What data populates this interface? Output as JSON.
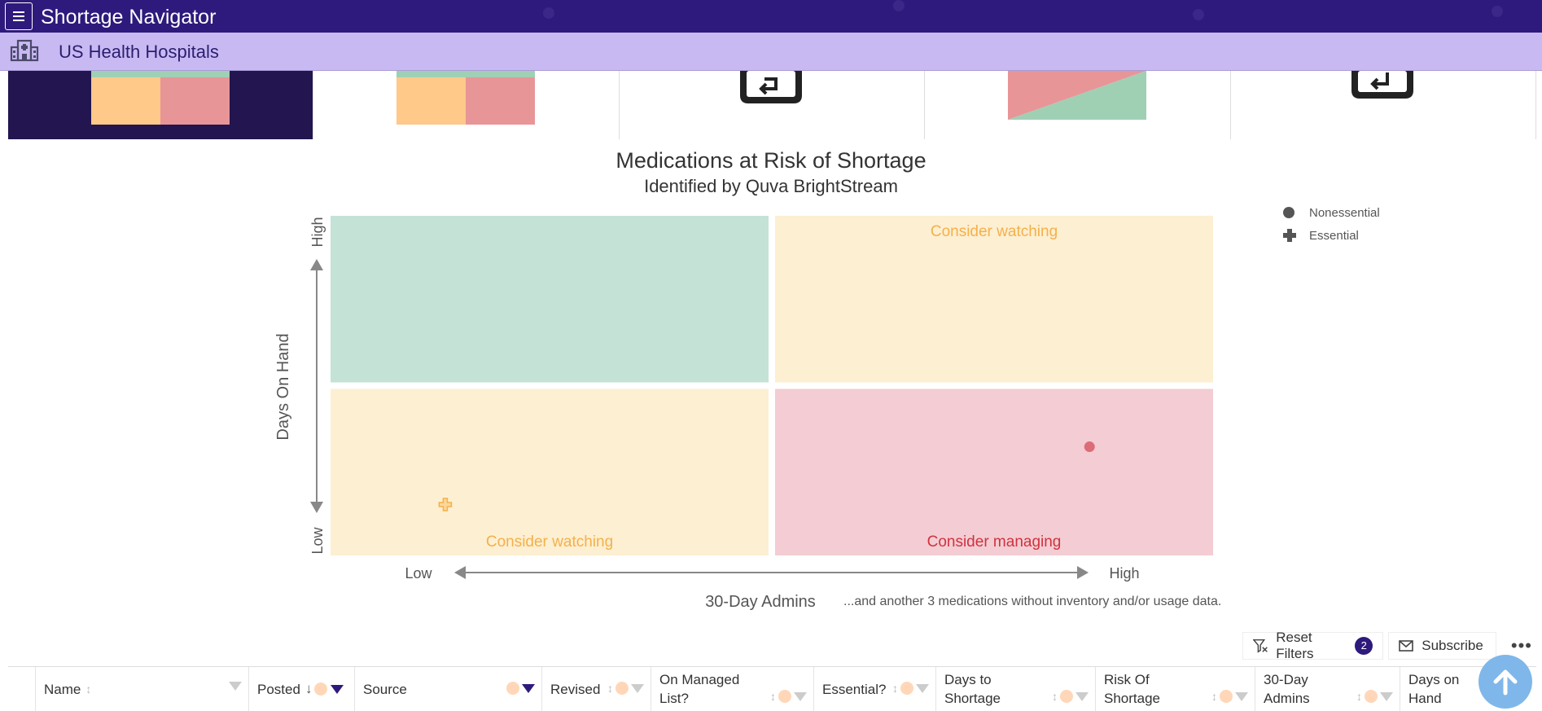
{
  "app": {
    "title": "Shortage Navigator"
  },
  "org": {
    "name": "US Health Hospitals"
  },
  "chart_data": {
    "type": "scatter",
    "title": "Medications at Risk of Shortage",
    "subtitle": "Identified by Quva BrightStream",
    "xlabel": "30-Day Admins",
    "ylabel": "Days On Hand",
    "x_ticks": [
      "Low",
      "High"
    ],
    "y_ticks": [
      "Low",
      "High"
    ],
    "quadrants": [
      {
        "position": "top-left",
        "label": "",
        "color": "#c5e2d6"
      },
      {
        "position": "top-right",
        "label": "Consider watching",
        "color": "#fdefd2",
        "label_color": "#f5b04a"
      },
      {
        "position": "bottom-left",
        "label": "Consider watching",
        "color": "#fdefd2",
        "label_color": "#f5b04a"
      },
      {
        "position": "bottom-right",
        "label": "Consider managing",
        "color": "#f3cdd3",
        "label_color": "#d0323f"
      }
    ],
    "series": [
      {
        "name": "Nonessential",
        "marker": "circle",
        "color": "#d9626e",
        "points": [
          {
            "x": 0.86,
            "y": 0.32
          }
        ]
      },
      {
        "name": "Essential",
        "marker": "plus",
        "color": "#f5b04a",
        "points": [
          {
            "x": 0.13,
            "y": 0.15
          }
        ]
      }
    ],
    "legend_position": "top-right",
    "note": "...and another 3 medications without inventory and/or usage data."
  },
  "toolbar": {
    "reset_filters_label": "Reset Filters",
    "reset_filters_count": "2",
    "subscribe_label": "Subscribe",
    "more_label": "•••"
  },
  "table": {
    "columns": [
      {
        "label": "Name",
        "filter_active": false
      },
      {
        "label": "Posted",
        "filter_active": true
      },
      {
        "label": "Source",
        "filter_active": true
      },
      {
        "label": "Revised",
        "filter_active": false
      },
      {
        "label": "On Managed List?",
        "filter_active": false
      },
      {
        "label": "Essential?",
        "filter_active": false
      },
      {
        "label": "Days to Shortage",
        "filter_active": false
      },
      {
        "label": "Risk Of Shortage",
        "filter_active": false
      },
      {
        "label": "30-Day Admins",
        "filter_active": false
      },
      {
        "label": "Days on Hand",
        "filter_active": false
      }
    ]
  },
  "colors": {
    "appbar": "#2e1a7c",
    "orgbar": "#c9b9f3",
    "accent": "#2e1a7c"
  },
  "icons": {
    "menu": "hamburger-icon",
    "org": "hospital-icon",
    "reset": "filter-reset-icon",
    "subscribe": "mail-icon",
    "scroll_top": "arrow-up-icon"
  }
}
